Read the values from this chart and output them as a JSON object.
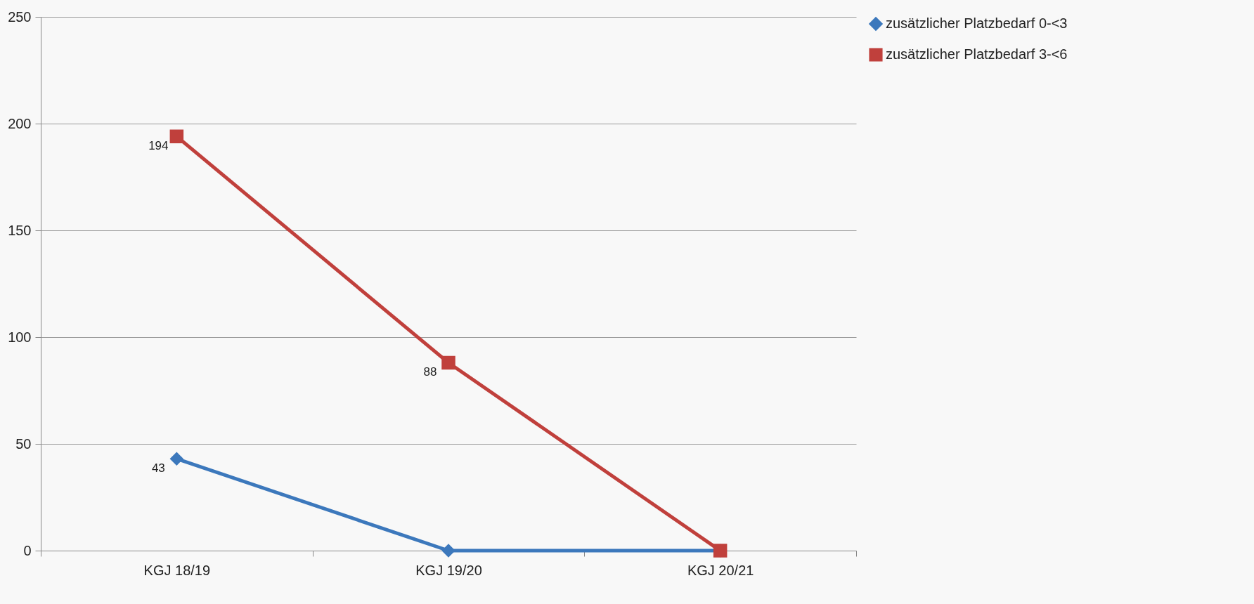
{
  "chart_data": {
    "type": "line",
    "categories": [
      "KGJ 18/19",
      "KGJ 19/20",
      "KGJ 20/21"
    ],
    "series": [
      {
        "name": "zusätzlicher Platzbedarf 0-<3",
        "color": "#3c78bc",
        "marker": "diamond",
        "values": [
          43,
          0,
          0
        ],
        "value_labels": [
          "43",
          null,
          null
        ]
      },
      {
        "name": "zusätzlicher Platzbedarf 3-<6",
        "color": "#c0403c",
        "marker": "square",
        "values": [
          194,
          88,
          0
        ],
        "value_labels": [
          "194",
          "88",
          null
        ]
      }
    ],
    "ylim": [
      0,
      250
    ],
    "yticks": [
      0,
      50,
      100,
      150,
      200,
      250
    ],
    "grid": "y",
    "legend": "right"
  }
}
